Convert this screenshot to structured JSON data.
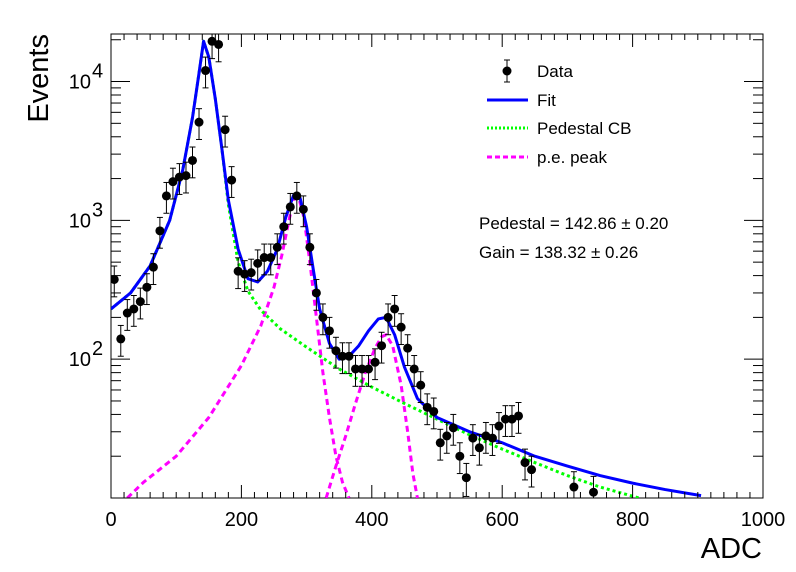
{
  "chart_data": {
    "type": "scatter",
    "title": "",
    "xlabel": "ADC",
    "ylabel": "Events",
    "xlim": [
      0,
      1000
    ],
    "ylim": [
      10,
      22000
    ],
    "y_scale": "log",
    "grid": false,
    "x_ticks": [
      {
        "value": 0,
        "label": "0"
      },
      {
        "value": 200,
        "label": "200"
      },
      {
        "value": 400,
        "label": "400"
      },
      {
        "value": 600,
        "label": "600"
      },
      {
        "value": 800,
        "label": "800"
      },
      {
        "value": 1000,
        "label": "1000"
      }
    ],
    "y_ticks": [
      {
        "value": 100,
        "base": "10",
        "exp": "2"
      },
      {
        "value": 1000,
        "base": "10",
        "exp": "3"
      },
      {
        "value": 10000,
        "base": "10",
        "exp": "4"
      }
    ],
    "legend": {
      "position": "top-right",
      "entries": [
        {
          "label": "Data",
          "style": "marker",
          "color": "#000000"
        },
        {
          "label": "Fit",
          "style": "solid",
          "color": "#0000ff"
        },
        {
          "label": "Pedestal CB",
          "style": "dotted",
          "color": "#00ff00"
        },
        {
          "label": "p.e. peak",
          "style": "dashed",
          "color": "#ff00ff"
        }
      ]
    },
    "annotations": [
      "Pedestal = 142.86 ± 0.20",
      "Gain = 138.32 ± 0.26"
    ],
    "series": [
      {
        "name": "Data",
        "style": "errorbar-points",
        "color": "#000000",
        "points": [
          [
            5,
            375
          ],
          [
            15,
            140
          ],
          [
            25,
            215
          ],
          [
            35,
            230
          ],
          [
            45,
            260
          ],
          [
            55,
            330
          ],
          [
            65,
            460
          ],
          [
            75,
            840
          ],
          [
            85,
            1500
          ],
          [
            95,
            1900
          ],
          [
            105,
            2050
          ],
          [
            115,
            2100
          ],
          [
            125,
            2700
          ],
          [
            135,
            5100
          ],
          [
            145,
            12000
          ],
          [
            155,
            19500
          ],
          [
            165,
            18500
          ],
          [
            175,
            4500
          ],
          [
            185,
            1950
          ],
          [
            195,
            430
          ],
          [
            205,
            410
          ],
          [
            215,
            420
          ],
          [
            225,
            490
          ],
          [
            235,
            540
          ],
          [
            245,
            540
          ],
          [
            255,
            640
          ],
          [
            265,
            900
          ],
          [
            275,
            1250
          ],
          [
            285,
            1500
          ],
          [
            295,
            1200
          ],
          [
            305,
            640
          ],
          [
            315,
            300
          ],
          [
            325,
            200
          ],
          [
            335,
            160
          ],
          [
            345,
            115
          ],
          [
            355,
            105
          ],
          [
            365,
            105
          ],
          [
            375,
            85
          ],
          [
            385,
            85
          ],
          [
            395,
            85
          ],
          [
            405,
            95
          ],
          [
            415,
            125
          ],
          [
            425,
            200
          ],
          [
            435,
            230
          ],
          [
            445,
            170
          ],
          [
            455,
            120
          ],
          [
            465,
            85
          ],
          [
            475,
            65
          ],
          [
            485,
            45
          ],
          [
            495,
            42
          ],
          [
            505,
            25
          ],
          [
            515,
            28
          ],
          [
            525,
            32
          ],
          [
            535,
            20
          ],
          [
            545,
            14
          ],
          [
            555,
            27
          ],
          [
            565,
            23
          ],
          [
            575,
            28
          ],
          [
            585,
            27
          ],
          [
            595,
            33
          ],
          [
            605,
            37
          ],
          [
            615,
            37
          ],
          [
            625,
            39
          ],
          [
            635,
            18
          ],
          [
            645,
            16
          ],
          [
            710,
            12
          ],
          [
            740,
            11
          ]
        ]
      },
      {
        "name": "Fit",
        "style": "solid",
        "color": "#0000ff",
        "points": [
          [
            0,
            230
          ],
          [
            30,
            300
          ],
          [
            60,
            470
          ],
          [
            90,
            1000
          ],
          [
            110,
            2300
          ],
          [
            125,
            5500
          ],
          [
            135,
            11500
          ],
          [
            142,
            19500
          ],
          [
            150,
            15000
          ],
          [
            160,
            7500
          ],
          [
            170,
            3300
          ],
          [
            180,
            1400
          ],
          [
            195,
            620
          ],
          [
            210,
            380
          ],
          [
            225,
            360
          ],
          [
            240,
            430
          ],
          [
            255,
            620
          ],
          [
            268,
            1050
          ],
          [
            280,
            1520
          ],
          [
            290,
            1450
          ],
          [
            300,
            900
          ],
          [
            310,
            450
          ],
          [
            320,
            230
          ],
          [
            335,
            130
          ],
          [
            350,
            100
          ],
          [
            365,
            105
          ],
          [
            380,
            125
          ],
          [
            395,
            160
          ],
          [
            410,
            195
          ],
          [
            422,
            200
          ],
          [
            435,
            150
          ],
          [
            450,
            88
          ],
          [
            470,
            52
          ],
          [
            500,
            38
          ],
          [
            550,
            30
          ],
          [
            600,
            25
          ],
          [
            650,
            20
          ],
          [
            700,
            17
          ],
          [
            750,
            14.5
          ],
          [
            800,
            12.8
          ],
          [
            850,
            11.5
          ],
          [
            905,
            10.4
          ]
        ]
      },
      {
        "name": "Pedestal CB",
        "style": "dotted",
        "color": "#00ff00",
        "points": [
          [
            0,
            230
          ],
          [
            30,
            300
          ],
          [
            60,
            470
          ],
          [
            90,
            1000
          ],
          [
            110,
            2300
          ],
          [
            125,
            5500
          ],
          [
            135,
            11500
          ],
          [
            142,
            19500
          ],
          [
            150,
            15000
          ],
          [
            160,
            7500
          ],
          [
            170,
            3300
          ],
          [
            180,
            1300
          ],
          [
            195,
            500
          ],
          [
            210,
            310
          ],
          [
            230,
            225
          ],
          [
            260,
            165
          ],
          [
            300,
            122
          ],
          [
            350,
            85
          ],
          [
            400,
            63
          ],
          [
            450,
            48
          ],
          [
            500,
            37
          ],
          [
            550,
            28.5
          ],
          [
            600,
            22.5
          ],
          [
            650,
            18
          ],
          [
            700,
            14.5
          ],
          [
            750,
            12
          ],
          [
            810,
            10
          ]
        ]
      },
      {
        "name": "p.e. peak",
        "style": "dashed",
        "color": "#ff00ff",
        "points": [
          [
            25,
            10
          ],
          [
            50,
            13
          ],
          [
            100,
            20
          ],
          [
            150,
            38
          ],
          [
            200,
            90
          ],
          [
            230,
            175
          ],
          [
            250,
            330
          ],
          [
            262,
            560
          ],
          [
            272,
            950
          ],
          [
            280,
            1420
          ],
          [
            288,
            1450
          ],
          [
            296,
            1050
          ],
          [
            305,
            500
          ],
          [
            315,
            200
          ],
          [
            325,
            80
          ],
          [
            335,
            38
          ],
          [
            345,
            20
          ],
          [
            355,
            13
          ],
          [
            365,
            10
          ]
        ]
      },
      {
        "name": "p.e. peak",
        "style": "dashed",
        "color": "#ff00ff",
        "points": [
          [
            330,
            10
          ],
          [
            345,
            17
          ],
          [
            360,
            28
          ],
          [
            375,
            48
          ],
          [
            390,
            80
          ],
          [
            405,
            120
          ],
          [
            415,
            145
          ],
          [
            422,
            150
          ],
          [
            432,
            125
          ],
          [
            445,
            65
          ],
          [
            455,
            30
          ],
          [
            463,
            15
          ],
          [
            470,
            10
          ]
        ]
      }
    ]
  }
}
